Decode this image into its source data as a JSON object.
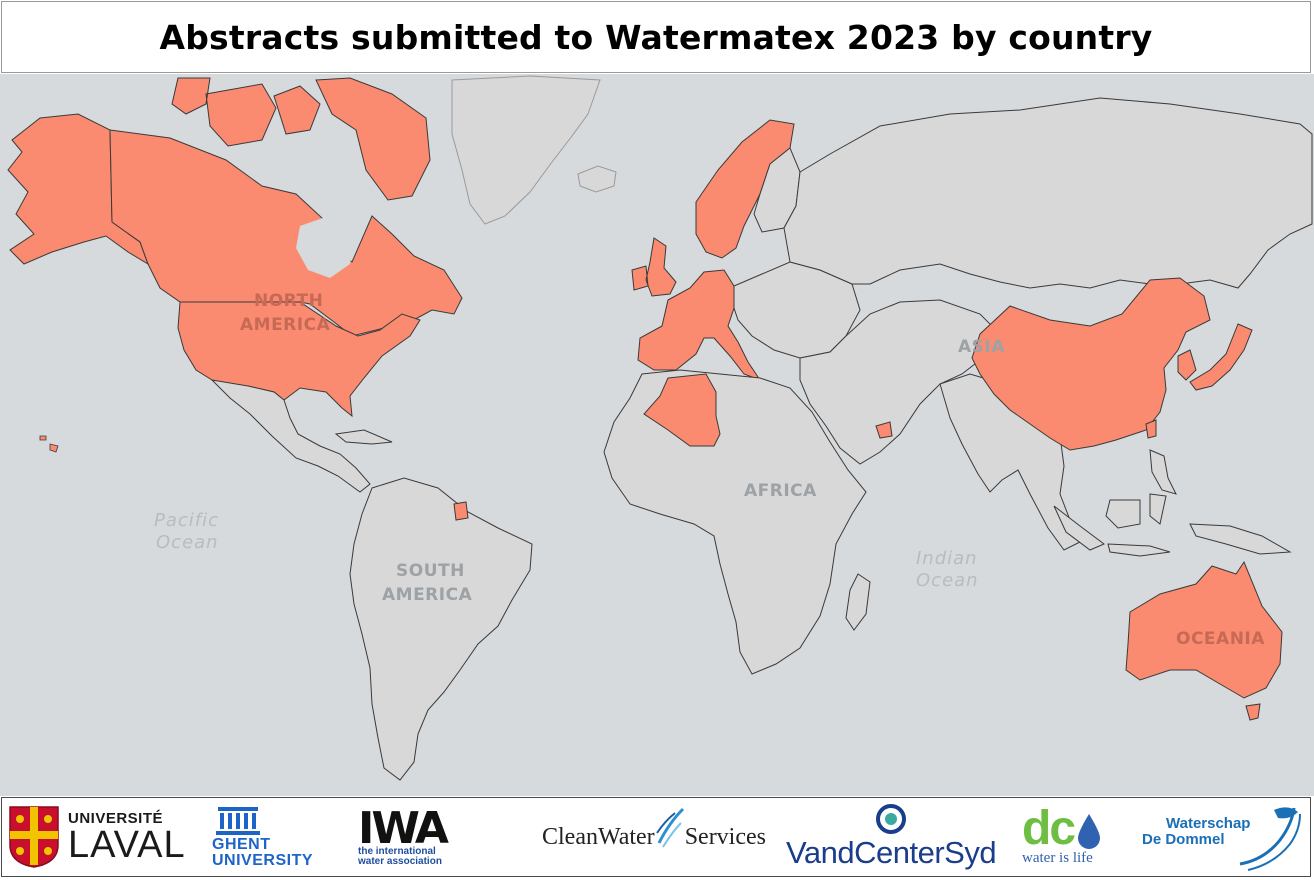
{
  "title": "Abstracts submitted to Watermatex 2023 by country",
  "map": {
    "colors": {
      "water": "#d6dadd",
      "land_default": "#d8d8d8",
      "land_submitted": "#fa8a70",
      "border": "#3a3a3a"
    },
    "labels": {
      "north_america": [
        "NORTH",
        "AMERICA"
      ],
      "south_america": [
        "SOUTH",
        "AMERICA"
      ],
      "africa": "AFRICA",
      "asia": "ASIA",
      "oceania": "OCEANIA",
      "pacific_ocean": [
        "Pacific",
        "Ocean"
      ],
      "indian_ocean": [
        "Indian",
        "Ocean"
      ]
    }
  },
  "sponsors": {
    "laval": {
      "top": "UNIVERSITÉ",
      "bottom": "LAVAL",
      "icon": "laval-crest-icon"
    },
    "ghent": {
      "line1": "GHENT",
      "line2": "UNIVERSITY",
      "icon": "ghent-building-icon"
    },
    "iwa": {
      "mark": "IWA",
      "sub1": "the international",
      "sub2": "water association"
    },
    "cleanwater": {
      "left": "CleanWater",
      "right": "Services",
      "icon": "water-splash-icon"
    },
    "vandcenter": {
      "name": "VandCenterSyd",
      "icon": "vandcenter-drop-icon"
    },
    "dc": {
      "mark": "dc",
      "tagline": "water is life",
      "icon": "water-drop-icon"
    },
    "dommel": {
      "line1": "Waterschap",
      "line2": "De Dommel",
      "icon": "fish-icon"
    }
  }
}
